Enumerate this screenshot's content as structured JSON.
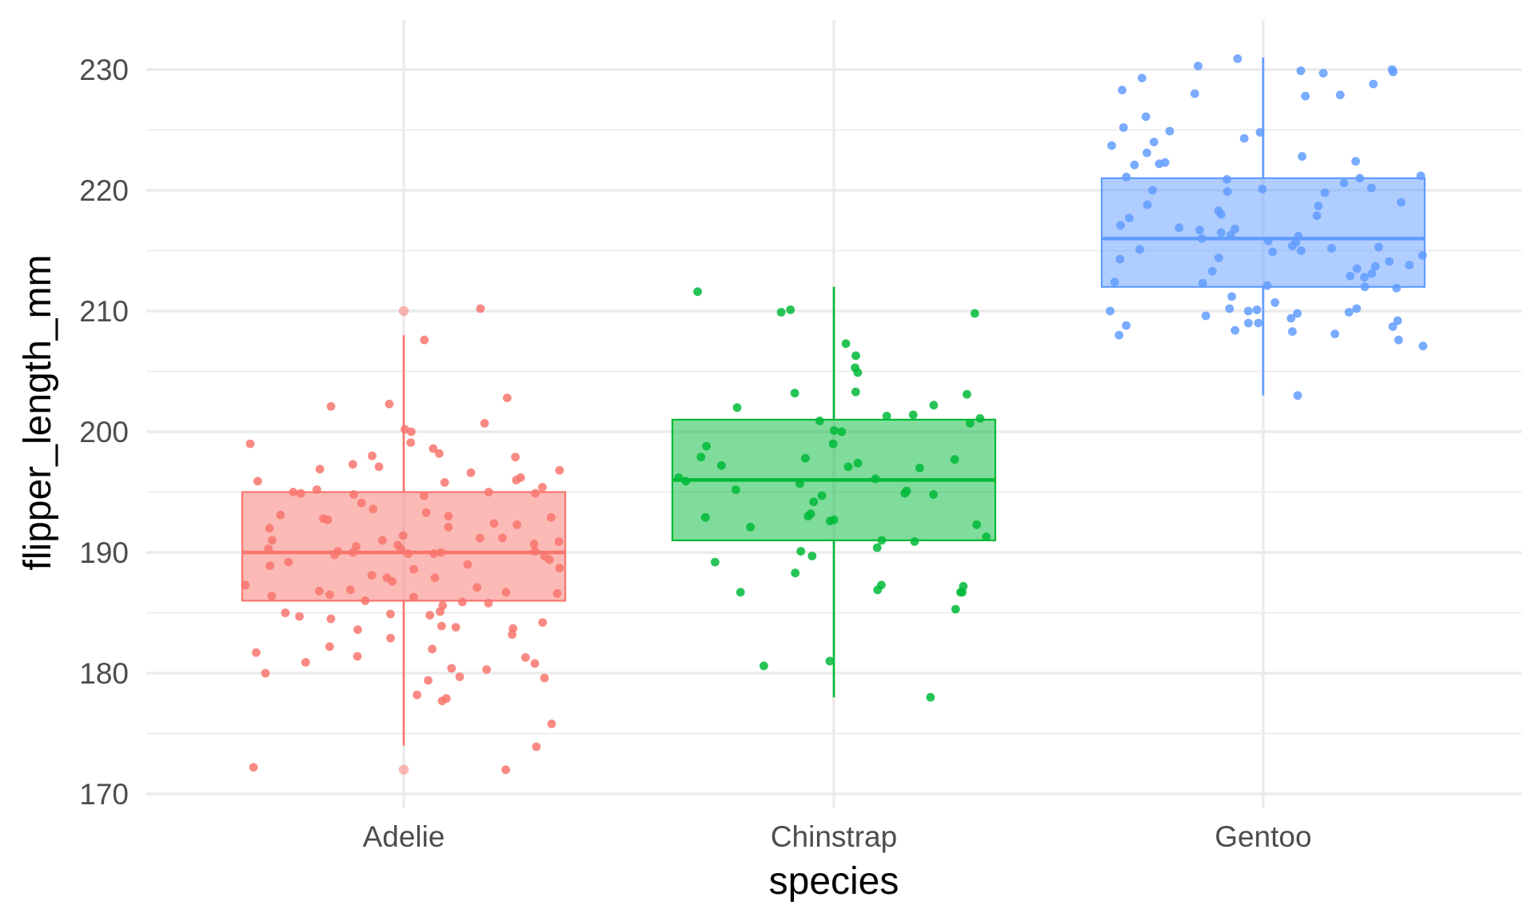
{
  "chart_data": {
    "type": "boxplot",
    "xlabel": "species",
    "ylabel": "flipper_length_mm",
    "ylim": [
      169,
      234
    ],
    "yticks": [
      170,
      180,
      190,
      200,
      210,
      220,
      230
    ],
    "grid": true,
    "legend": "none",
    "categories": [
      "Adelie",
      "Chinstrap",
      "Gentoo"
    ],
    "series": [
      {
        "name": "Adelie",
        "color": "#F8766D",
        "box": {
          "whisker_low": 174,
          "q1": 186,
          "median": 190,
          "q3": 195,
          "whisker_high": 208
        },
        "outliers": [
          172,
          210
        ],
        "points": [
          210.2,
          207.6,
          202.3,
          202.1,
          202.8,
          200.7,
          200.2,
          200.0,
          199.1,
          199.0,
          198.6,
          198.2,
          198.0,
          197.9,
          197.3,
          197.1,
          196.9,
          196.8,
          196.6,
          196.2,
          196.0,
          195.9,
          195.8,
          195.4,
          195.2,
          195.0,
          195.0,
          194.9,
          194.9,
          194.8,
          194.7,
          194.1,
          193.6,
          193.3,
          193.1,
          193.0,
          192.9,
          192.8,
          192.7,
          192.4,
          192.3,
          192.1,
          192.0,
          191.4,
          191.2,
          191.2,
          191.0,
          191.0,
          190.9,
          190.7,
          190.6,
          190.5,
          190.3,
          190.3,
          190.1,
          190.1,
          190.0,
          190.0,
          189.9,
          189.9,
          189.8,
          189.7,
          189.4,
          189.2,
          189.0,
          188.9,
          188.7,
          188.6,
          188.1,
          187.9,
          187.9,
          187.6,
          187.3,
          187.1,
          186.9,
          186.8,
          186.7,
          186.6,
          186.5,
          186.4,
          186.3,
          186.0,
          185.9,
          185.8,
          185.6,
          185.1,
          185.0,
          184.9,
          184.8,
          184.7,
          184.5,
          184.2,
          183.9,
          183.8,
          183.7,
          183.6,
          183.2,
          182.9,
          182.2,
          182.0,
          181.7,
          181.4,
          181.3,
          180.9,
          180.8,
          180.4,
          180.3,
          180.0,
          179.7,
          179.6,
          179.4,
          178.2,
          177.9,
          177.7,
          175.8,
          173.9,
          172.2,
          172.0
        ]
      },
      {
        "name": "Chinstrap",
        "color": "#00BA38",
        "box": {
          "whisker_low": 178,
          "q1": 191,
          "median": 196,
          "q3": 201,
          "whisker_high": 212
        },
        "outliers": [],
        "points": [
          211.6,
          210.1,
          209.9,
          209.8,
          207.3,
          206.3,
          205.3,
          204.9,
          203.3,
          203.2,
          203.1,
          202.2,
          202.0,
          201.4,
          201.3,
          201.1,
          200.9,
          200.7,
          200.1,
          200.0,
          199.0,
          198.8,
          197.9,
          197.8,
          197.7,
          197.4,
          197.2,
          197.1,
          197.0,
          196.2,
          196.1,
          195.9,
          195.7,
          195.2,
          195.1,
          194.9,
          194.8,
          194.7,
          194.2,
          193.2,
          193.0,
          192.9,
          192.7,
          192.6,
          192.3,
          192.1,
          191.3,
          191.0,
          190.9,
          190.4,
          190.1,
          189.7,
          189.2,
          188.3,
          187.3,
          187.2,
          186.9,
          186.7,
          186.7,
          186.7,
          185.3,
          181.0,
          180.6,
          178.0
        ]
      },
      {
        "name": "Gentoo",
        "color": "#619CFF",
        "box": {
          "whisker_low": 203,
          "q1": 212,
          "median": 216,
          "q3": 221,
          "whisker_high": 231
        },
        "outliers": [],
        "points": [
          230.9,
          230.3,
          230.0,
          229.9,
          229.8,
          229.7,
          229.3,
          228.8,
          228.3,
          228.0,
          227.9,
          227.8,
          226.1,
          225.2,
          224.9,
          224.8,
          224.3,
          224.0,
          223.7,
          223.1,
          222.8,
          222.4,
          222.3,
          222.2,
          222.1,
          221.2,
          221.1,
          221.0,
          220.9,
          220.6,
          220.2,
          220.1,
          220.0,
          219.9,
          219.8,
          219.0,
          218.8,
          218.7,
          218.3,
          218.0,
          217.9,
          217.7,
          217.1,
          216.9,
          216.8,
          216.7,
          216.5,
          216.3,
          216.2,
          216.0,
          215.8,
          215.7,
          215.4,
          215.3,
          215.2,
          215.1,
          215.0,
          214.9,
          214.6,
          214.4,
          214.3,
          214.1,
          213.8,
          213.7,
          213.5,
          213.3,
          213.1,
          212.9,
          212.8,
          212.4,
          212.3,
          212.1,
          212.0,
          211.9,
          211.2,
          210.7,
          210.2,
          210.2,
          210.1,
          210.0,
          210.0,
          209.9,
          209.8,
          209.6,
          209.4,
          209.2,
          209.0,
          209.0,
          208.8,
          208.7,
          208.4,
          208.3,
          208.1,
          208.0,
          207.6,
          207.1,
          203.0
        ]
      }
    ]
  }
}
